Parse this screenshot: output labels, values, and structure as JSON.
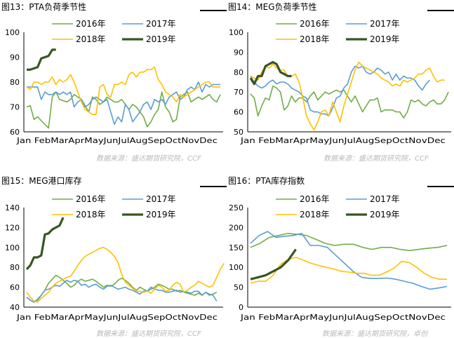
{
  "source_text": "数据来源：盛达期货研究院，CCF",
  "source_text_last": "数据来源：盛达期货研究院，卓创",
  "series_colors": {
    "2016年": "#70ad47",
    "2017年": "#5b9bd5",
    "2018年": "#ffc000",
    "2019年": "#375623"
  },
  "chart_data": [
    {
      "type": "line",
      "title": "图13：PTA负荷季节性",
      "x_labels": [
        "Jan",
        "Feb",
        "Mar",
        "Apr",
        "May",
        "Jun",
        "Jul",
        "Aug",
        "Sep",
        "Oct",
        "Nov",
        "Dec"
      ],
      "ylim": [
        60,
        100
      ],
      "yticks": [
        60,
        70,
        80,
        90,
        100
      ],
      "legend": "top",
      "series": [
        {
          "name": "2016年",
          "values": [
            70,
            70.5,
            65,
            66,
            64.5,
            63,
            61.5,
            74,
            76,
            73,
            72.5,
            72,
            73,
            75,
            74,
            73,
            70.5,
            68,
            74,
            73,
            71,
            72,
            74,
            73,
            72,
            72,
            73,
            71,
            69,
            71,
            70,
            68,
            66,
            62,
            64,
            67,
            69,
            76,
            70,
            68,
            64,
            65,
            74,
            75,
            76,
            72,
            73,
            74,
            73,
            74,
            75,
            73,
            72,
            75
          ]
        },
        {
          "name": "2017年",
          "values": [
            78,
            78,
            78,
            78,
            73,
            76,
            75,
            75,
            76,
            75,
            76,
            75,
            76,
            70,
            72,
            73,
            70,
            71,
            73,
            74,
            73,
            72,
            73,
            68,
            63,
            66,
            64,
            71,
            69,
            64,
            66,
            68,
            71,
            72,
            69,
            73,
            72,
            73,
            71,
            74,
            75,
            76,
            73,
            74,
            77,
            78,
            77,
            80,
            76,
            79,
            78,
            79,
            79,
            79
          ]
        },
        {
          "name": "2018年",
          "values": [
            78,
            77,
            80,
            80,
            79,
            80,
            80,
            82,
            79,
            81,
            80,
            81,
            83,
            80,
            76,
            72,
            69,
            68,
            67,
            67,
            78,
            79,
            75,
            74,
            79,
            79,
            80,
            79,
            83,
            84,
            82,
            84,
            84,
            85,
            85,
            86,
            81,
            79,
            76,
            75,
            74,
            72,
            75,
            74,
            75,
            76,
            77,
            78,
            79,
            80,
            80,
            78,
            78,
            78
          ]
        },
        {
          "name": "2019年",
          "values": [
            85,
            85,
            85.5,
            86,
            89.5,
            90,
            90.5,
            93,
            93
          ]
        }
      ]
    },
    {
      "type": "line",
      "title": "图14：MEG负荷季节性",
      "x_labels": [
        "Jan",
        "Feb",
        "Mar",
        "Apr",
        "May",
        "Jun",
        "Jul",
        "Aug",
        "Sep",
        "Oct",
        "Nov",
        "Dec"
      ],
      "ylim": [
        50,
        100
      ],
      "yticks": [
        50,
        60,
        70,
        80,
        90,
        100
      ],
      "legend": "top",
      "series": [
        {
          "name": "2016年",
          "values": [
            69,
            67,
            58,
            63,
            67,
            66,
            73,
            72,
            70,
            61,
            63,
            68,
            65,
            67,
            67,
            65,
            68,
            70,
            66,
            68,
            70,
            69,
            70,
            71,
            70,
            71,
            68,
            65,
            68,
            64,
            60,
            63,
            66,
            66,
            67,
            60,
            61,
            61,
            61,
            60,
            60,
            57,
            60,
            66,
            65,
            66,
            64,
            63,
            65,
            66,
            64,
            64,
            66,
            70
          ]
        },
        {
          "name": "2017年",
          "values": [
            78,
            75,
            73,
            72,
            73,
            75,
            76,
            74,
            75,
            75,
            74,
            72,
            71,
            70,
            68,
            67,
            61,
            60,
            60,
            59,
            59,
            58,
            62,
            67,
            68,
            72,
            74,
            80,
            83,
            82,
            83,
            80,
            79,
            80,
            82,
            81,
            79,
            80,
            76,
            79,
            76,
            78,
            77,
            77,
            76,
            73,
            71,
            74,
            76
          ]
        },
        {
          "name": "2018年",
          "values": [
            78,
            77,
            76,
            80,
            83,
            82,
            84,
            82,
            81,
            81,
            78,
            78,
            79,
            75,
            67,
            58,
            54,
            51,
            55,
            60,
            61,
            58,
            65,
            60,
            55,
            63,
            69,
            75,
            81,
            85,
            83,
            82,
            81,
            80,
            79,
            77,
            76,
            75,
            73,
            74,
            73,
            76,
            75,
            76,
            77,
            79,
            79,
            81,
            82,
            78,
            75,
            76,
            76
          ]
        },
        {
          "name": "2019年",
          "values": [
            77,
            74,
            78,
            78,
            83,
            84,
            85,
            84,
            80,
            79,
            78,
            78
          ]
        }
      ]
    },
    {
      "type": "line",
      "title": "图15：MEG港口库存",
      "x_labels": [
        "Jan",
        "Feb",
        "Mar",
        "Apr",
        "May",
        "Jun",
        "Jul",
        "Aug",
        "Sep",
        "Oct",
        "Nov",
        "Dec"
      ],
      "ylim": [
        40,
        140
      ],
      "yticks": [
        40,
        60,
        80,
        100,
        120,
        140
      ],
      "legend": "top",
      "series": [
        {
          "name": "2016年",
          "values": [
            50,
            47,
            45,
            47,
            52,
            57,
            64,
            68,
            72,
            70,
            67,
            64,
            60,
            62,
            66,
            68,
            66,
            67,
            68,
            66,
            63,
            60,
            62,
            61,
            63,
            67,
            69,
            67,
            64,
            60,
            57,
            60,
            58,
            56,
            58,
            60,
            63,
            62,
            60,
            58,
            58,
            56,
            57,
            55,
            54,
            53,
            52,
            54,
            52,
            55,
            52,
            53,
            55
          ]
        },
        {
          "name": "2017年",
          "values": [
            50,
            47,
            45,
            48,
            52,
            57,
            58,
            60,
            62,
            61,
            64,
            67,
            65,
            67,
            66,
            62,
            63,
            60,
            62,
            63,
            60,
            58,
            61,
            62,
            60,
            58,
            59,
            60,
            58,
            57,
            55,
            53,
            56,
            56,
            60,
            58,
            57,
            57,
            55,
            55,
            56,
            57,
            55,
            56,
            55,
            54,
            56,
            56,
            52,
            55,
            53,
            52,
            46
          ]
        },
        {
          "name": "2018年",
          "values": [
            55,
            50,
            46,
            45,
            49,
            52,
            55,
            60,
            64,
            66,
            68,
            70,
            71,
            76,
            82,
            87,
            91,
            93,
            95,
            97,
            99,
            100,
            98,
            95,
            91,
            85,
            73,
            65,
            62,
            59,
            56,
            56,
            55,
            56,
            54,
            58,
            62,
            60,
            56,
            57,
            62,
            65,
            63,
            55,
            57,
            60,
            62,
            66,
            64,
            62,
            60,
            62,
            70,
            78,
            84
          ]
        },
        {
          "name": "2019年",
          "values": [
            78,
            82,
            90,
            90,
            92,
            113,
            114,
            118,
            120,
            122,
            130
          ]
        }
      ]
    },
    {
      "type": "line",
      "title": "图16：PTA库存指数",
      "x_labels": [
        "Jan",
        "Feb",
        "Mar",
        "Apr",
        "May",
        "Jun",
        "Jul",
        "Aug",
        "Sep",
        "Oct",
        "Nov",
        "Dec"
      ],
      "ylim": [
        0,
        250
      ],
      "yticks": [
        0,
        50,
        100,
        150,
        200,
        250
      ],
      "legend": "top",
      "series": [
        {
          "name": "2016年",
          "values": [
            150,
            160,
            175,
            180,
            185,
            183,
            180,
            170,
            160,
            155,
            158,
            158,
            150,
            145,
            150,
            150,
            145,
            142,
            145,
            148,
            150,
            155
          ]
        },
        {
          "name": "2017年",
          "values": [
            160,
            180,
            190,
            175,
            178,
            180,
            185,
            155,
            155,
            150,
            130,
            110,
            90,
            75,
            72,
            72,
            73,
            70,
            65,
            60,
            52,
            45,
            48,
            52
          ]
        },
        {
          "name": "2018年",
          "values": [
            60,
            65,
            65,
            80,
            108,
            120,
            125,
            118,
            110,
            105,
            100,
            96,
            90,
            88,
            85,
            85,
            80,
            80,
            88,
            98,
            115,
            112,
            100,
            85,
            75,
            70,
            70
          ]
        },
        {
          "name": "2019年",
          "values": [
            70,
            75,
            80,
            90,
            100,
            118,
            145
          ]
        }
      ]
    }
  ]
}
